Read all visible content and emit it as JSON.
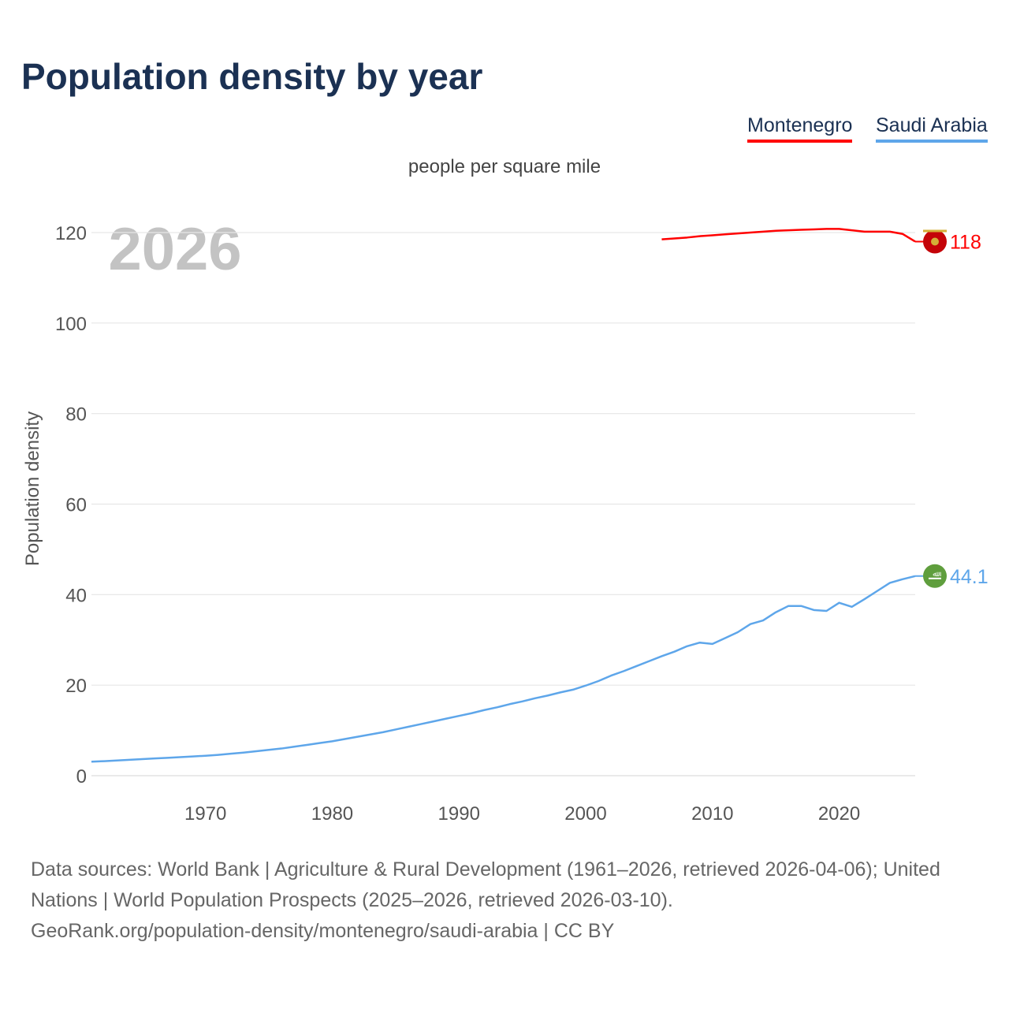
{
  "chart_data": {
    "type": "line",
    "title": "Population density by year",
    "subtitle": "people per square mile",
    "ylabel": "Population density",
    "xlabel": "",
    "year_watermark": "2026",
    "xlim": [
      1961,
      2026
    ],
    "ylim": [
      0,
      120
    ],
    "xticks": [
      1970,
      1980,
      1990,
      2000,
      2010,
      2020
    ],
    "yticks": [
      0,
      20,
      40,
      60,
      80,
      100,
      120
    ],
    "grid": true,
    "legend_position": "top-right",
    "series": [
      {
        "name": "Montenegro",
        "color": "#ff0000",
        "end_label": "118",
        "flag": "montenegro-flag",
        "x": [
          2006,
          2007,
          2008,
          2009,
          2010,
          2011,
          2012,
          2013,
          2014,
          2015,
          2016,
          2017,
          2018,
          2019,
          2020,
          2021,
          2022,
          2023,
          2024,
          2025,
          2026
        ],
        "values": [
          118.5,
          118.7,
          118.9,
          119.2,
          119.4,
          119.6,
          119.8,
          120.0,
          120.2,
          120.4,
          120.5,
          120.6,
          120.7,
          120.8,
          120.8,
          120.5,
          120.2,
          120.2,
          120.2,
          119.7,
          118
        ]
      },
      {
        "name": "Saudi Arabia",
        "color": "#5ea6ea",
        "end_label": "44.1",
        "flag": "saudi-arabia-flag",
        "x": [
          1961,
          1962,
          1963,
          1964,
          1965,
          1966,
          1967,
          1968,
          1969,
          1970,
          1971,
          1972,
          1973,
          1974,
          1975,
          1976,
          1977,
          1978,
          1979,
          1980,
          1981,
          1982,
          1983,
          1984,
          1985,
          1986,
          1987,
          1988,
          1989,
          1990,
          1991,
          1992,
          1993,
          1994,
          1995,
          1996,
          1997,
          1998,
          1999,
          2000,
          2001,
          2002,
          2003,
          2004,
          2005,
          2006,
          2007,
          2008,
          2009,
          2010,
          2011,
          2012,
          2013,
          2014,
          2015,
          2016,
          2017,
          2018,
          2019,
          2020,
          2021,
          2022,
          2023,
          2024,
          2025,
          2026
        ],
        "values": [
          3.1,
          3.2,
          3.35,
          3.5,
          3.65,
          3.8,
          3.95,
          4.1,
          4.25,
          4.4,
          4.6,
          4.85,
          5.1,
          5.4,
          5.7,
          6.0,
          6.4,
          6.8,
          7.2,
          7.6,
          8.1,
          8.6,
          9.1,
          9.6,
          10.2,
          10.8,
          11.4,
          12.0,
          12.6,
          13.2,
          13.8,
          14.5,
          15.1,
          15.8,
          16.4,
          17.1,
          17.7,
          18.4,
          19.0,
          19.9,
          20.9,
          22.1,
          23.1,
          24.2,
          25.3,
          26.4,
          27.4,
          28.6,
          29.4,
          29.1,
          30.4,
          31.7,
          33.5,
          34.3,
          36.1,
          37.5,
          37.5,
          36.6,
          36.4,
          38.2,
          37.3,
          39.0,
          40.8,
          42.6,
          43.4,
          44.1
        ]
      }
    ]
  },
  "footer": {
    "sources": "Data sources: World Bank | Agriculture & Rural Development (1961–2026, retrieved 2026-04-06); United Nations | World Population Prospects (2025–2026, retrieved 2026-03-10).",
    "attribution": "GeoRank.org/population-density/montenegro/saudi-arabia | CC BY"
  }
}
